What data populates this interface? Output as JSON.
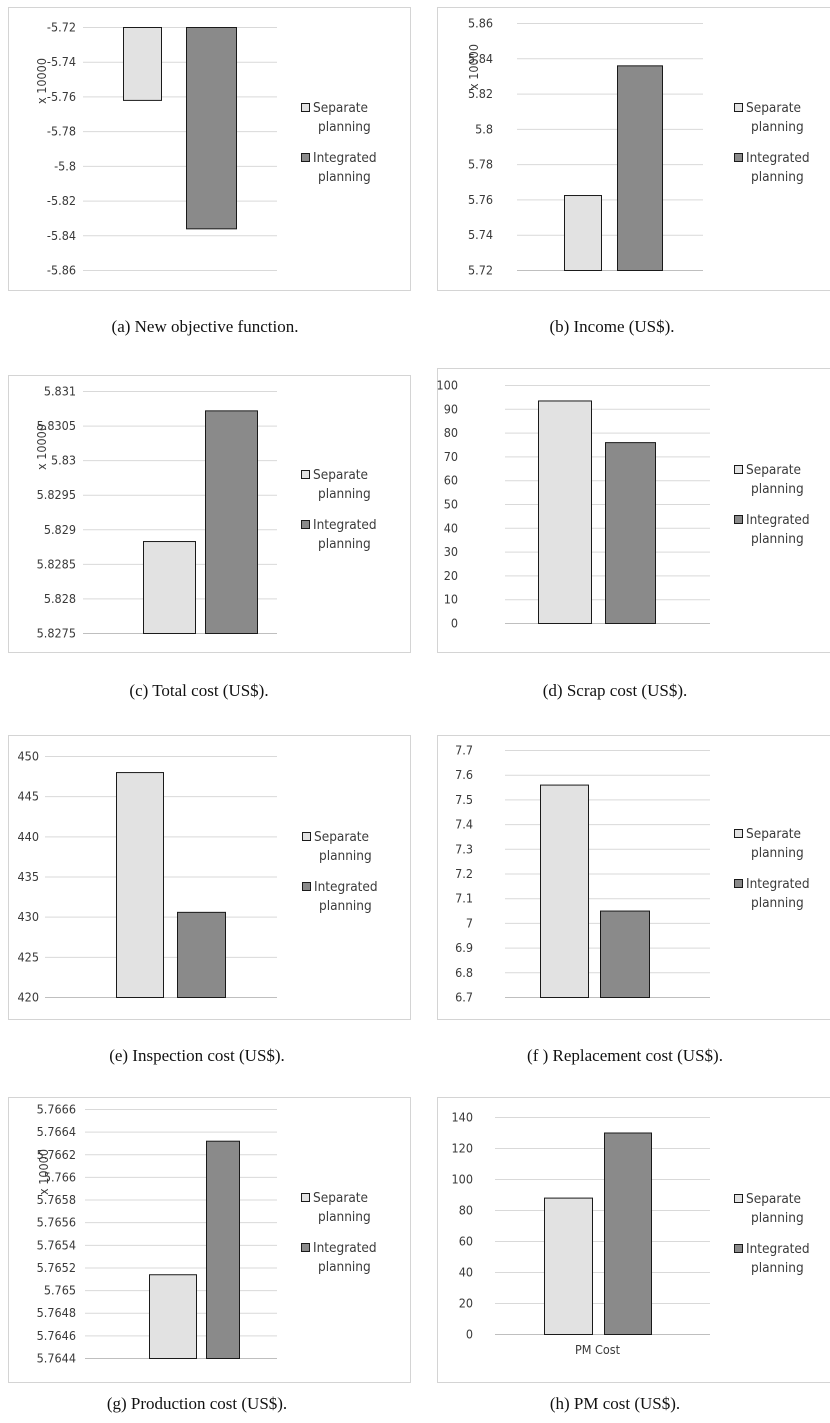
{
  "series_names": [
    "Separate planning",
    "Integrated planning"
  ],
  "legend_lines": [
    [
      "Separate",
      "planning"
    ],
    [
      "Integrated",
      "planning"
    ]
  ],
  "colors": {
    "separate": "#e2e2e2",
    "integrated": "#8a8a8a"
  },
  "chart_data": [
    {
      "id": "a",
      "type": "bar",
      "caption": "(a)  New objective function.",
      "multiplier": "x 10000",
      "ylim": [
        -5.86,
        -5.72
      ],
      "ticks": [
        "-5.72",
        "-5.74",
        "-5.76",
        "-5.78",
        "-5.8",
        "-5.82",
        "-5.84",
        "-5.86"
      ],
      "inverted": true,
      "series": [
        {
          "name": "Separate planning",
          "values": [
            -5.762
          ]
        },
        {
          "name": "Integrated planning",
          "values": [
            -5.836
          ]
        }
      ],
      "legend": "right",
      "grid": true
    },
    {
      "id": "b",
      "type": "bar",
      "caption": "(b)  Income (US$).",
      "multiplier": "x 10000",
      "ylim": [
        5.72,
        5.86
      ],
      "ticks": [
        "5.86",
        "5.84",
        "5.82",
        "5.8",
        "5.78",
        "5.76",
        "5.74",
        "5.72"
      ],
      "series": [
        {
          "name": "Separate planning",
          "values": [
            5.7625
          ]
        },
        {
          "name": "Integrated planning",
          "values": [
            5.836
          ]
        }
      ],
      "legend": "right",
      "grid": true
    },
    {
      "id": "c",
      "type": "bar",
      "caption": "(c)  Total cost (US$).",
      "multiplier": "x 10000",
      "ylim": [
        5.8275,
        5.831
      ],
      "ticks": [
        "5.831",
        "5.8305",
        "5.83",
        "5.8295",
        "5.829",
        "5.8285",
        "5.828",
        "5.8275"
      ],
      "series": [
        {
          "name": "Separate planning",
          "values": [
            5.82883
          ]
        },
        {
          "name": "Integrated planning",
          "values": [
            5.83072
          ]
        }
      ],
      "legend": "right",
      "grid": true
    },
    {
      "id": "d",
      "type": "bar",
      "caption": "(d)  Scrap cost (US$).",
      "ylim": [
        0,
        100
      ],
      "ticks": [
        "100",
        "90",
        "80",
        "70",
        "60",
        "50",
        "40",
        "30",
        "20",
        "10",
        "0"
      ],
      "series": [
        {
          "name": "Separate planning",
          "values": [
            93.5
          ]
        },
        {
          "name": "Integrated planning",
          "values": [
            76
          ]
        }
      ],
      "legend": "right",
      "grid": true
    },
    {
      "id": "e",
      "type": "bar",
      "caption": "(e)  Inspection cost (US$).",
      "ylim": [
        420,
        450
      ],
      "ticks": [
        "450",
        "445",
        "440",
        "435",
        "430",
        "425",
        "420"
      ],
      "series": [
        {
          "name": "Separate planning",
          "values": [
            448
          ]
        },
        {
          "name": "Integrated planning",
          "values": [
            430.6
          ]
        }
      ],
      "legend": "right",
      "grid": true
    },
    {
      "id": "f",
      "type": "bar",
      "caption": "(f )  Replacement cost (US$).",
      "ylim": [
        6.7,
        7.7
      ],
      "ticks": [
        "7.7",
        "7.6",
        "7.5",
        "7.4",
        "7.3",
        "7.2",
        "7.1",
        "7",
        "6.9",
        "6.8",
        "6.7"
      ],
      "series": [
        {
          "name": "Separate planning",
          "values": [
            7.56
          ]
        },
        {
          "name": "Integrated planning",
          "values": [
            7.05
          ]
        }
      ],
      "legend": "right",
      "grid": true
    },
    {
      "id": "g",
      "type": "bar",
      "caption": "(g)  Production cost (US$).",
      "multiplier": "x 10000",
      "ylim": [
        5.7644,
        5.7666
      ],
      "ticks": [
        "5.7666",
        "5.7664",
        "5.7662",
        "5.766",
        "5.7658",
        "5.7656",
        "5.7654",
        "5.7652",
        "5.765",
        "5.7648",
        "5.7646",
        "5.7644"
      ],
      "series": [
        {
          "name": "Separate planning",
          "values": [
            5.76514
          ]
        },
        {
          "name": "Integrated planning",
          "values": [
            5.76632
          ]
        }
      ],
      "legend": "right",
      "grid": true
    },
    {
      "id": "h",
      "type": "bar",
      "caption": "(h)  PM cost (US$).",
      "categories": [
        "PM Cost"
      ],
      "ylim": [
        0,
        140
      ],
      "ticks": [
        "140",
        "120",
        "100",
        "80",
        "60",
        "40",
        "20",
        "0"
      ],
      "series": [
        {
          "name": "Separate planning",
          "values": [
            88
          ]
        },
        {
          "name": "Integrated planning",
          "values": [
            130
          ]
        }
      ],
      "legend": "right",
      "grid": true
    }
  ]
}
